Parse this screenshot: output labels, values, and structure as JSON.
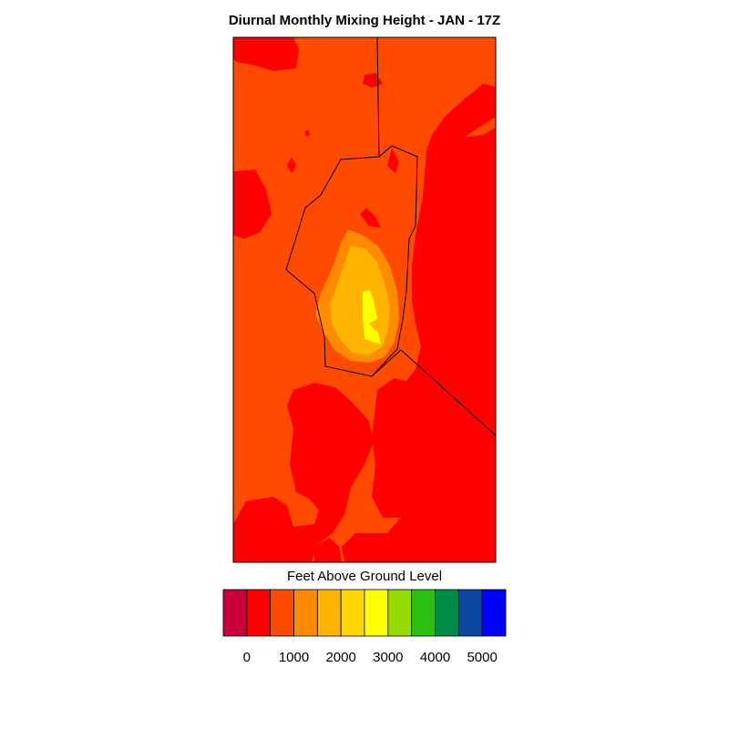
{
  "chart_data": {
    "type": "heatmap",
    "subtype": "filled-contour-map",
    "title": "Diurnal Monthly Mixing Height - JAN - 17Z",
    "colorbar": {
      "label": "Feet Above Ground Level",
      "orientation": "horizontal",
      "placement": "bottom",
      "colors": [
        "#c8003c",
        "#ff0000",
        "#ff4b00",
        "#ff8c00",
        "#ffb400",
        "#ffd700",
        "#ffff00",
        "#96dc00",
        "#2cbe10",
        "#008c46",
        "#0a46a0",
        "#0000ff"
      ],
      "level_step": 500,
      "tick_values": [
        0,
        1000,
        2000,
        3000,
        4000,
        5000
      ],
      "tick_labels": [
        "0",
        "1000",
        "2000",
        "3000",
        "4000",
        "5000"
      ]
    }
  }
}
